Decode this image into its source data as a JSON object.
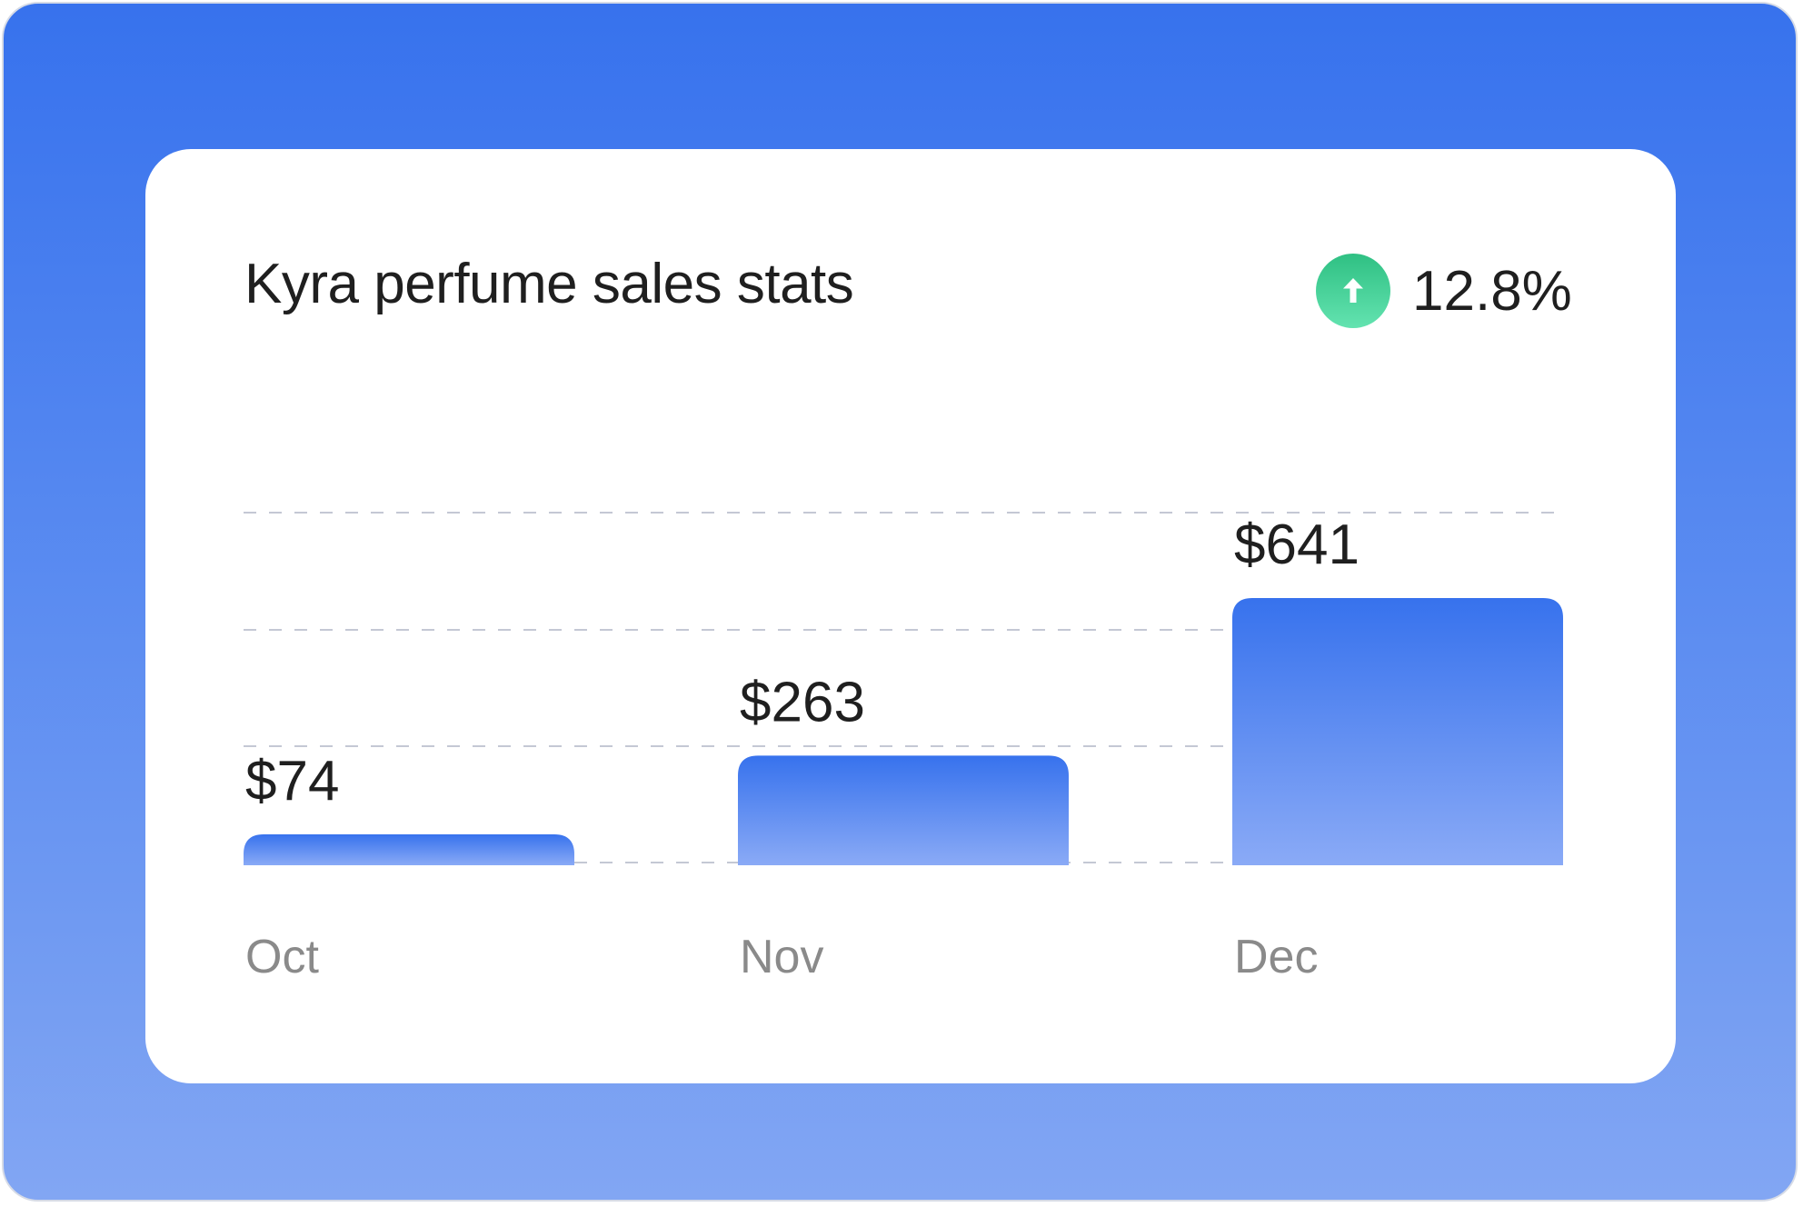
{
  "colors": {
    "background_top": "#3772ed",
    "background_bottom": "#82a6f3",
    "bar_top": "#3772ed",
    "bar_bottom": "#8aaaf6",
    "trend_up": "#2fc083"
  },
  "trend": {
    "icon": "arrow-up-icon",
    "value": "12.8%"
  },
  "chart_data": {
    "type": "bar",
    "title": "Kyra perfume sales stats",
    "categories": [
      "Oct",
      "Nov",
      "Dec"
    ],
    "values": [
      74,
      263,
      641
    ],
    "value_labels": [
      "$74",
      "$263",
      "$641"
    ],
    "grid": true,
    "grid_style": "dashed",
    "legend": "none"
  }
}
